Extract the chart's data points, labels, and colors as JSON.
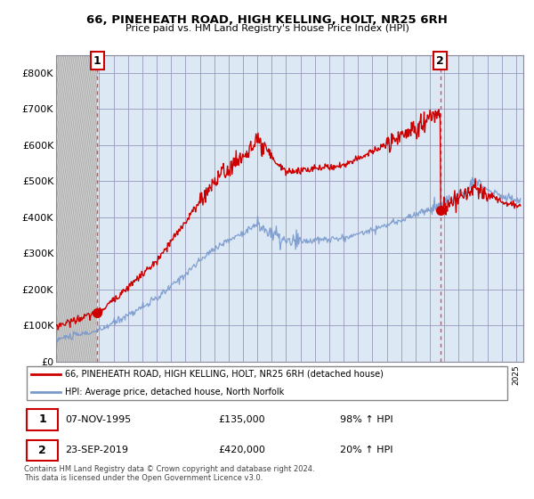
{
  "title": "66, PINEHEATH ROAD, HIGH KELLING, HOLT, NR25 6RH",
  "subtitle": "Price paid vs. HM Land Registry's House Price Index (HPI)",
  "xlim_start": 1993.0,
  "xlim_end": 2025.5,
  "ylim": [
    0,
    850000
  ],
  "yticks": [
    0,
    100000,
    200000,
    300000,
    400000,
    500000,
    600000,
    700000,
    800000
  ],
  "ytick_labels": [
    "£0",
    "£100K",
    "£200K",
    "£300K",
    "£400K",
    "£500K",
    "£600K",
    "£700K",
    "£800K"
  ],
  "sale1_x": 1995.85,
  "sale1_y": 135000,
  "sale1_label": "1",
  "sale2_x": 2019.72,
  "sale2_y": 420000,
  "sale2_label": "2",
  "line1_color": "#cc0000",
  "line2_color": "#7799cc",
  "hatch_color": "#bbbbbb",
  "grid_color": "#aaaacc",
  "bg_color": "#ffffff",
  "plot_bg": "#dde8f5",
  "legend1_text": "66, PINEHEATH ROAD, HIGH KELLING, HOLT, NR25 6RH (detached house)",
  "legend2_text": "HPI: Average price, detached house, North Norfolk",
  "footer": "Contains HM Land Registry data © Crown copyright and database right 2024.\nThis data is licensed under the Open Government Licence v3.0.",
  "xtick_years": [
    1993,
    1994,
    1995,
    1996,
    1997,
    1998,
    1999,
    2000,
    2001,
    2002,
    2003,
    2004,
    2005,
    2006,
    2007,
    2008,
    2009,
    2010,
    2011,
    2012,
    2013,
    2014,
    2015,
    2016,
    2017,
    2018,
    2019,
    2020,
    2021,
    2022,
    2023,
    2024,
    2025
  ]
}
